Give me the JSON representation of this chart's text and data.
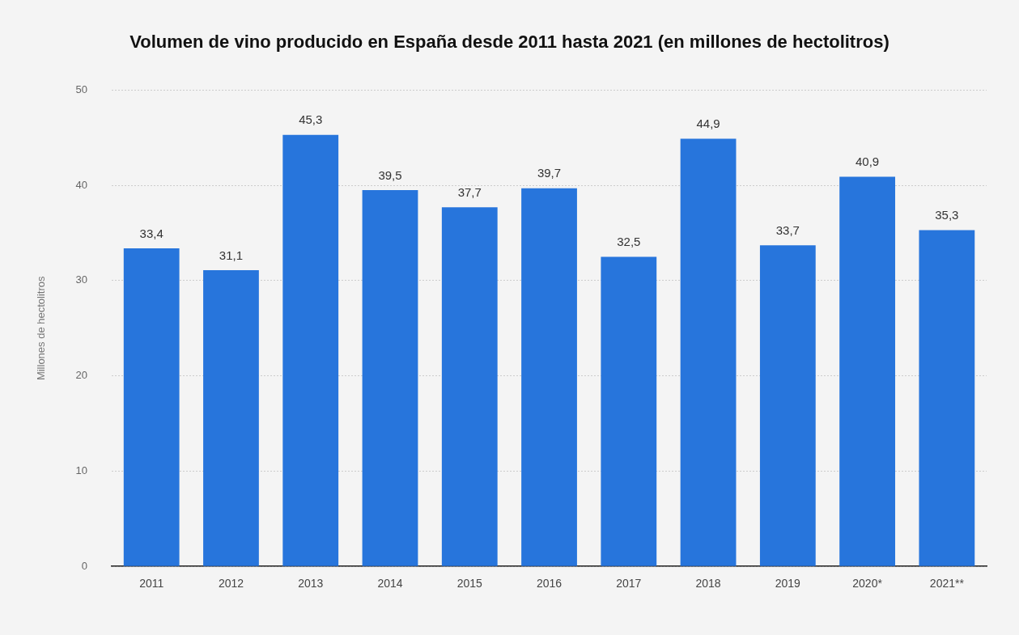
{
  "chart_data": {
    "type": "bar",
    "title": "Volumen de vino producido en España desde 2011 hasta 2021 (en millones de hectolitros)",
    "ylabel": "Millones de hectolitros",
    "categories": [
      "2011",
      "2012",
      "2013",
      "2014",
      "2015",
      "2016",
      "2017",
      "2018",
      "2019",
      "2020*",
      "2021**"
    ],
    "values": [
      33.4,
      31.1,
      45.3,
      39.5,
      37.7,
      39.7,
      32.5,
      44.9,
      33.7,
      40.9,
      35.3
    ],
    "value_labels": [
      "33,4",
      "31,1",
      "45,3",
      "39,5",
      "37,7",
      "39,7",
      "32,5",
      "44,9",
      "33,7",
      "40,9",
      "35,3"
    ],
    "color": "#2775dc",
    "ylim": [
      0,
      50
    ],
    "yticks": [
      0,
      10,
      20,
      30,
      40,
      50
    ],
    "grid": "y",
    "legend": false
  }
}
